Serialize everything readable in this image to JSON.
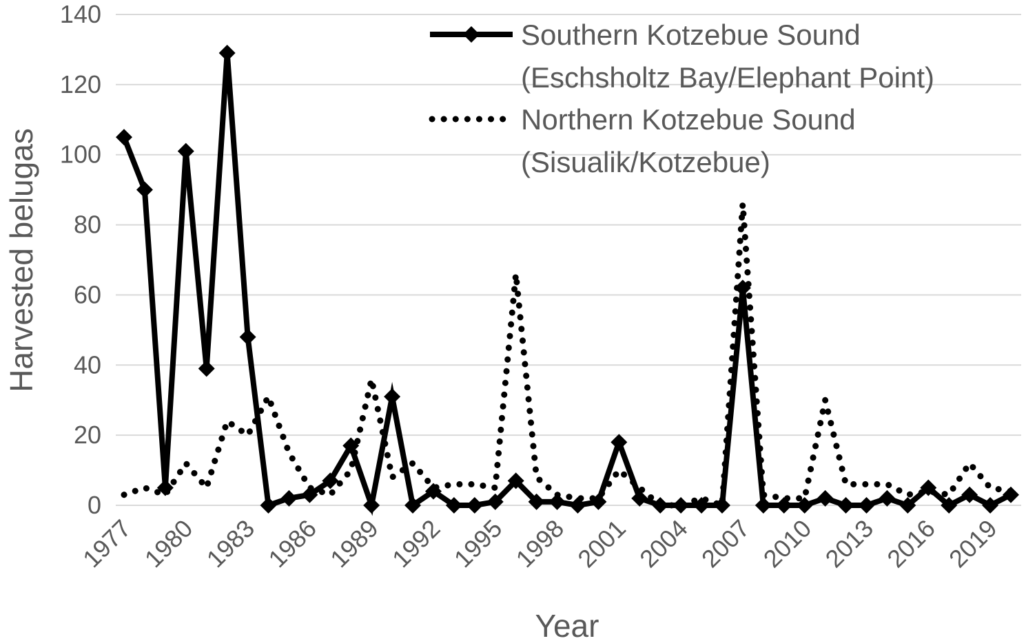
{
  "chart_data": {
    "type": "line",
    "xlabel": "Year",
    "ylabel": "Harvested belugas",
    "ylim": [
      0,
      140
    ],
    "yticks": [
      0,
      20,
      40,
      60,
      80,
      100,
      120,
      140
    ],
    "xticks": [
      1977,
      1980,
      1983,
      1986,
      1989,
      1992,
      1995,
      1998,
      2001,
      2004,
      2007,
      2010,
      2013,
      2016,
      2019
    ],
    "x": [
      1977,
      1978,
      1979,
      1980,
      1981,
      1982,
      1983,
      1984,
      1985,
      1986,
      1987,
      1988,
      1989,
      1990,
      1991,
      1992,
      1993,
      1994,
      1995,
      1996,
      1997,
      1998,
      1999,
      2000,
      2001,
      2002,
      2003,
      2004,
      2005,
      2006,
      2007,
      2008,
      2009,
      2010,
      2011,
      2012,
      2013,
      2014,
      2015,
      2016,
      2017,
      2018,
      2019,
      2020
    ],
    "grid": true,
    "legend_position": "top-right",
    "series": [
      {
        "name": "Southern Kotzebue Sound (Eschsholtz Bay/Elephant Point)",
        "legend_lines": [
          "Southern Kotzebue Sound",
          "(Eschsholtz Bay/Elephant Point)"
        ],
        "style": "solid-diamond",
        "color": "#000000",
        "values": [
          105,
          90,
          5,
          101,
          39,
          129,
          48,
          0,
          2,
          3,
          7,
          17,
          0,
          31,
          0,
          4,
          0,
          0,
          1,
          7,
          1,
          1,
          0,
          1,
          18,
          2,
          0,
          0,
          0,
          0,
          62,
          0,
          0,
          0,
          2,
          0,
          0,
          2,
          0,
          5,
          0,
          3,
          0,
          3
        ]
      },
      {
        "name": "Northern Kotzebue Sound (Sisualik/Kotzebue)",
        "legend_lines": [
          "Northern Kotzebue Sound",
          "(Sisualik/Kotzebue)"
        ],
        "style": "dotted",
        "color": "#000000",
        "values": [
          3,
          5,
          3,
          12,
          5,
          24,
          20,
          31,
          15,
          5,
          3,
          10,
          36,
          8,
          12,
          5,
          6,
          6,
          5,
          66,
          8,
          3,
          2,
          2,
          10,
          5,
          0,
          0,
          2,
          0,
          86,
          3,
          2,
          2,
          30,
          6,
          6,
          6,
          3,
          4,
          3,
          12,
          5,
          4
        ]
      }
    ]
  }
}
